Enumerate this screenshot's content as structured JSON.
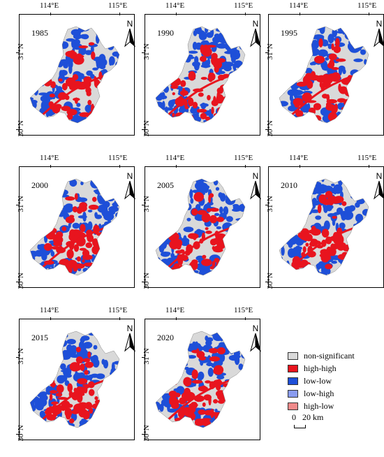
{
  "axis": {
    "lon_left": "114°E",
    "lon_right": "115°E",
    "lat_top": "31°N",
    "lat_bottom": "30°N"
  },
  "north_label": "N",
  "panels": [
    {
      "year": "1985"
    },
    {
      "year": "1990"
    },
    {
      "year": "1995"
    },
    {
      "year": "2000"
    },
    {
      "year": "2005"
    },
    {
      "year": "2010"
    },
    {
      "year": "2015"
    },
    {
      "year": "2020"
    }
  ],
  "legend": {
    "items": [
      {
        "label": "non-significant",
        "color": "#d9d9d9"
      },
      {
        "label": "high-high",
        "color": "#e8141e"
      },
      {
        "label": "low-low",
        "color": "#1e4fd8"
      },
      {
        "label": "low-high",
        "color": "#8a9cf0"
      },
      {
        "label": "high-low",
        "color": "#f08a8a"
      }
    ],
    "scale_start": "0",
    "scale_label": "20 km"
  }
}
